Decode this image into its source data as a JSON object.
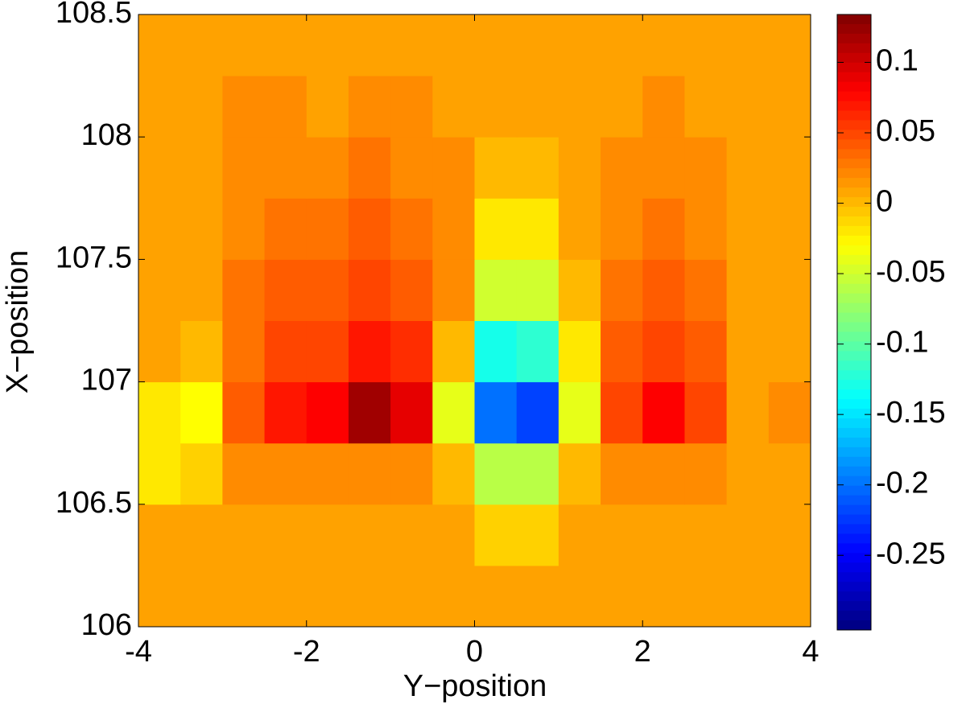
{
  "chart_data": {
    "type": "heatmap",
    "x_label": "Y−position",
    "y_label": "X−position",
    "x": [
      -3.75,
      -3.25,
      -2.75,
      -2.25,
      -1.75,
      -1.25,
      -0.75,
      -0.25,
      0.25,
      0.75,
      1.25,
      1.75,
      2.25,
      2.75,
      3.25,
      3.75
    ],
    "y": [
      106.125,
      106.375,
      106.625,
      106.875,
      107.125,
      107.375,
      107.625,
      107.875,
      108.125,
      108.375
    ],
    "z": [
      [
        0.01,
        0.01,
        0.01,
        0.01,
        0.01,
        0.01,
        0.01,
        0.01,
        0.01,
        0.01,
        0.01,
        0.01,
        0.01,
        0.01,
        0.01,
        0.01
      ],
      [
        0.01,
        0.01,
        0.01,
        0.01,
        0.01,
        0.01,
        0.01,
        0.01,
        -0.01,
        -0.01,
        0.01,
        0.01,
        0.01,
        0.01,
        0.01,
        0.01
      ],
      [
        -0.02,
        -0.01,
        0.02,
        0.02,
        0.02,
        0.02,
        0.02,
        0.0,
        -0.06,
        -0.06,
        0.0,
        0.02,
        0.02,
        0.02,
        0.01,
        0.01
      ],
      [
        -0.02,
        -0.03,
        0.04,
        0.07,
        0.08,
        0.12,
        0.09,
        -0.04,
        -0.2,
        -0.22,
        -0.04,
        0.05,
        0.08,
        0.05,
        0.01,
        0.02
      ],
      [
        0.01,
        0.0,
        0.03,
        0.05,
        0.05,
        0.07,
        0.06,
        0.0,
        -0.13,
        -0.12,
        -0.02,
        0.04,
        0.05,
        0.04,
        0.01,
        0.01
      ],
      [
        0.01,
        0.01,
        0.03,
        0.04,
        0.04,
        0.05,
        0.04,
        0.02,
        -0.05,
        -0.05,
        0.0,
        0.03,
        0.04,
        0.03,
        0.01,
        0.01
      ],
      [
        0.01,
        0.01,
        0.02,
        0.03,
        0.03,
        0.04,
        0.03,
        0.02,
        -0.02,
        -0.02,
        0.01,
        0.02,
        0.03,
        0.02,
        0.01,
        0.01
      ],
      [
        0.01,
        0.01,
        0.02,
        0.02,
        0.02,
        0.03,
        0.02,
        0.02,
        0.0,
        0.0,
        0.01,
        0.02,
        0.02,
        0.02,
        0.01,
        0.01
      ],
      [
        0.01,
        0.01,
        0.02,
        0.02,
        0.01,
        0.02,
        0.02,
        0.01,
        0.01,
        0.01,
        0.01,
        0.01,
        0.02,
        0.01,
        0.01,
        0.01
      ],
      [
        0.01,
        0.01,
        0.01,
        0.01,
        0.01,
        0.01,
        0.01,
        0.01,
        0.01,
        0.01,
        0.01,
        0.01,
        0.01,
        0.01,
        0.01,
        0.01
      ]
    ],
    "colormap": "jet",
    "xlim": [
      -4,
      4
    ],
    "xticks": [
      -4,
      -2,
      0,
      2,
      4
    ],
    "ylim": [
      106,
      108.5
    ],
    "yticks": [
      106,
      106.5,
      107,
      107.5,
      108,
      108.5
    ],
    "clim": [
      -0.303,
      0.134
    ],
    "cticks": [
      -0.25,
      -0.2,
      -0.15,
      -0.1,
      -0.05,
      0,
      0.05,
      0.1
    ]
  }
}
